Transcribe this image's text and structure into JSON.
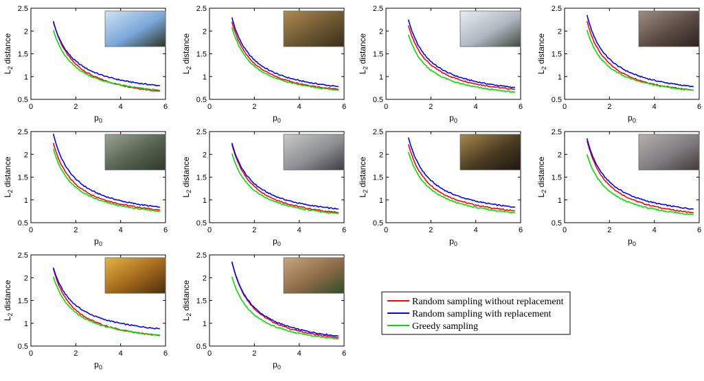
{
  "colors": {
    "without_replacement": "#ff0000",
    "with_replacement": "#0000ff",
    "greedy": "#00dd00"
  },
  "legend": {
    "placement": "bottom-right",
    "entries": [
      {
        "label": "Random sampling without replacement",
        "color": "#ff0000"
      },
      {
        "label": "Random sampling with replacement",
        "color": "#0000ff"
      },
      {
        "label": "Greedy sampling",
        "color": "#00dd00"
      }
    ]
  },
  "chart_data": [
    {
      "type": "line",
      "xlabel_main": "p",
      "xlabel_sub": "0",
      "ylabel_main": "L",
      "ylabel_sub": "2",
      "ylabel_rest": " distance",
      "xlim": [
        0,
        6
      ],
      "ylim": [
        0.5,
        2.5
      ],
      "xticks": [
        "0",
        "2",
        "4",
        "6"
      ],
      "yticks": [
        "0.5",
        "1",
        "1.5",
        "2",
        "2.5"
      ],
      "thumbnail": "sky-trees-photo",
      "series": [
        {
          "key": "without_replacement",
          "start": 2.22,
          "end": 0.68
        },
        {
          "key": "with_replacement",
          "start": 2.2,
          "end": 0.8
        },
        {
          "key": "greedy",
          "start": 2.02,
          "end": 0.7
        }
      ]
    },
    {
      "type": "line",
      "xlabel_main": "p",
      "xlabel_sub": "0",
      "ylabel_main": "L",
      "ylabel_sub": "2",
      "ylabel_rest": " distance",
      "xlim": [
        0,
        6
      ],
      "ylim": [
        0.5,
        2.5
      ],
      "xticks": [
        "0",
        "2",
        "4",
        "6"
      ],
      "yticks": [
        "0.5",
        "1",
        "1.5",
        "2",
        "2.5"
      ],
      "thumbnail": "rocks-photo",
      "series": [
        {
          "key": "without_replacement",
          "start": 2.2,
          "end": 0.72
        },
        {
          "key": "with_replacement",
          "start": 2.3,
          "end": 0.78
        },
        {
          "key": "greedy",
          "start": 2.08,
          "end": 0.7
        }
      ]
    },
    {
      "type": "line",
      "xlabel_main": "p",
      "xlabel_sub": "0",
      "ylabel_main": "L",
      "ylabel_sub": "2",
      "ylabel_rest": " distance",
      "xlim": [
        0,
        6
      ],
      "ylim": [
        0.5,
        2.5
      ],
      "xticks": [
        "0",
        "2",
        "4",
        "6"
      ],
      "yticks": [
        "0.5",
        "1",
        "1.5",
        "2",
        "2.5"
      ],
      "thumbnail": "snowy-field-photo",
      "series": [
        {
          "key": "without_replacement",
          "start": 2.12,
          "end": 0.72
        },
        {
          "key": "with_replacement",
          "start": 2.25,
          "end": 0.76
        },
        {
          "key": "greedy",
          "start": 1.92,
          "end": 0.66
        }
      ]
    },
    {
      "type": "line",
      "xlabel_main": "p",
      "xlabel_sub": "0",
      "ylabel_main": "L",
      "ylabel_sub": "2",
      "ylabel_rest": " distance",
      "xlim": [
        0,
        6
      ],
      "ylim": [
        0.5,
        2.5
      ],
      "xticks": [
        "0",
        "2",
        "4",
        "6"
      ],
      "yticks": [
        "0.5",
        "1",
        "1.5",
        "2",
        "2.5"
      ],
      "thumbnail": "people-street-photo",
      "series": [
        {
          "key": "without_replacement",
          "start": 2.22,
          "end": 0.7
        },
        {
          "key": "with_replacement",
          "start": 2.35,
          "end": 0.78
        },
        {
          "key": "greedy",
          "start": 2.02,
          "end": 0.7
        }
      ]
    },
    {
      "type": "line",
      "xlabel_main": "p",
      "xlabel_sub": "0",
      "ylabel_main": "L",
      "ylabel_sub": "2",
      "ylabel_rest": " distance",
      "xlim": [
        0,
        6
      ],
      "ylim": [
        0.5,
        2.5
      ],
      "xticks": [
        "0",
        "2",
        "4",
        "6"
      ],
      "yticks": [
        "0.5",
        "1",
        "1.5",
        "2",
        "2.5"
      ],
      "thumbnail": "tree-branches-photo",
      "series": [
        {
          "key": "without_replacement",
          "start": 2.25,
          "end": 0.78
        },
        {
          "key": "with_replacement",
          "start": 2.45,
          "end": 0.84
        },
        {
          "key": "greedy",
          "start": 2.12,
          "end": 0.75
        }
      ]
    },
    {
      "type": "line",
      "xlabel_main": "p",
      "xlabel_sub": "0",
      "ylabel_main": "L",
      "ylabel_sub": "2",
      "ylabel_rest": " distance",
      "xlim": [
        0,
        6
      ],
      "ylim": [
        0.5,
        2.5
      ],
      "xticks": [
        "0",
        "2",
        "4",
        "6"
      ],
      "yticks": [
        "0.5",
        "1",
        "1.5",
        "2",
        "2.5"
      ],
      "thumbnail": "street-cars-photo",
      "series": [
        {
          "key": "without_replacement",
          "start": 2.22,
          "end": 0.72
        },
        {
          "key": "with_replacement",
          "start": 2.25,
          "end": 0.8
        },
        {
          "key": "greedy",
          "start": 2.02,
          "end": 0.7
        }
      ]
    },
    {
      "type": "line",
      "xlabel_main": "p",
      "xlabel_sub": "0",
      "ylabel_main": "L",
      "ylabel_sub": "2",
      "ylabel_rest": " distance",
      "xlim": [
        0,
        6
      ],
      "ylim": [
        0.5,
        2.5
      ],
      "xticks": [
        "0",
        "2",
        "4",
        "6"
      ],
      "yticks": [
        "0.5",
        "1",
        "1.5",
        "2",
        "2.5"
      ],
      "thumbnail": "shop-shelves-photo",
      "series": [
        {
          "key": "without_replacement",
          "start": 2.22,
          "end": 0.76
        },
        {
          "key": "with_replacement",
          "start": 2.37,
          "end": 0.84
        },
        {
          "key": "greedy",
          "start": 2.05,
          "end": 0.72
        }
      ]
    },
    {
      "type": "line",
      "xlabel_main": "p",
      "xlabel_sub": "0",
      "ylabel_main": "L",
      "ylabel_sub": "2",
      "ylabel_rest": " distance",
      "xlim": [
        0,
        6
      ],
      "ylim": [
        0.5,
        2.5
      ],
      "xticks": [
        "0",
        "2",
        "4",
        "6"
      ],
      "yticks": [
        "0.5",
        "1",
        "1.5",
        "2",
        "2.5"
      ],
      "thumbnail": "railway-tracks-photo",
      "series": [
        {
          "key": "without_replacement",
          "start": 2.3,
          "end": 0.72
        },
        {
          "key": "with_replacement",
          "start": 2.35,
          "end": 0.8
        },
        {
          "key": "greedy",
          "start": 2.0,
          "end": 0.68
        }
      ]
    },
    {
      "type": "line",
      "xlabel_main": "p",
      "xlabel_sub": "0",
      "ylabel_main": "L",
      "ylabel_sub": "2",
      "ylabel_rest": " distance",
      "xlim": [
        0,
        6
      ],
      "ylim": [
        0.5,
        2.5
      ],
      "xticks": [
        "0",
        "2",
        "4",
        "6"
      ],
      "yticks": [
        "0.5",
        "1",
        "1.5",
        "2",
        "2.5"
      ],
      "thumbnail": "sunflower-photo",
      "series": [
        {
          "key": "without_replacement",
          "start": 2.2,
          "end": 0.73
        },
        {
          "key": "with_replacement",
          "start": 2.22,
          "end": 0.88
        },
        {
          "key": "greedy",
          "start": 2.02,
          "end": 0.74
        }
      ]
    },
    {
      "type": "line",
      "xlabel_main": "p",
      "xlabel_sub": "0",
      "ylabel_main": "L",
      "ylabel_sub": "2",
      "ylabel_rest": " distance",
      "xlim": [
        0,
        6
      ],
      "ylim": [
        0.5,
        2.5
      ],
      "xticks": [
        "0",
        "2",
        "4",
        "6"
      ],
      "yticks": [
        "0.5",
        "1",
        "1.5",
        "2",
        "2.5"
      ],
      "thumbnail": "tractor-photo",
      "series": [
        {
          "key": "without_replacement",
          "start": 2.35,
          "end": 0.68
        },
        {
          "key": "with_replacement",
          "start": 2.35,
          "end": 0.72
        },
        {
          "key": "greedy",
          "start": 2.02,
          "end": 0.66
        }
      ]
    }
  ]
}
